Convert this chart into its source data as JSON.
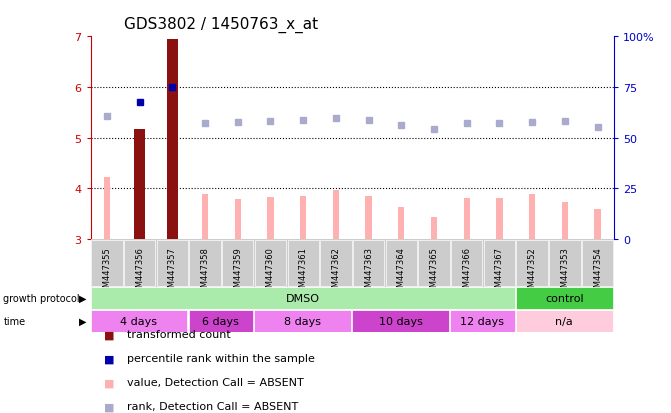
{
  "title": "GDS3802 / 1450763_x_at",
  "samples": [
    "GSM447355",
    "GSM447356",
    "GSM447357",
    "GSM447358",
    "GSM447359",
    "GSM447360",
    "GSM447361",
    "GSM447362",
    "GSM447363",
    "GSM447364",
    "GSM447365",
    "GSM447366",
    "GSM447367",
    "GSM447352",
    "GSM447353",
    "GSM447354"
  ],
  "transformed_count": [
    null,
    5.18,
    6.95,
    null,
    null,
    null,
    null,
    null,
    null,
    null,
    null,
    null,
    null,
    null,
    null,
    null
  ],
  "absent_value": [
    4.22,
    null,
    null,
    3.88,
    3.79,
    3.84,
    3.86,
    3.97,
    3.86,
    3.63,
    3.43,
    3.82,
    3.82,
    3.88,
    3.73,
    3.6
  ],
  "percentile_rank_left": [
    null,
    5.7,
    6.0,
    null,
    null,
    null,
    null,
    null,
    null,
    null,
    null,
    null,
    null,
    null,
    null,
    null
  ],
  "absent_rank_left": [
    5.42,
    null,
    null,
    5.28,
    5.3,
    5.32,
    5.35,
    5.38,
    5.35,
    5.25,
    5.18,
    5.28,
    5.28,
    5.3,
    5.32,
    5.22
  ],
  "ylim": [
    3.0,
    7.0
  ],
  "y2lim": [
    0,
    100
  ],
  "yticks": [
    3,
    4,
    5,
    6,
    7
  ],
  "y2ticks": [
    0,
    25,
    50,
    75,
    100
  ],
  "y2tick_labels": [
    "0",
    "25",
    "50",
    "75",
    "100%"
  ],
  "growth_protocol_groups": [
    {
      "label": "DMSO",
      "start": 0,
      "end": 12,
      "color": "#AAEAAA"
    },
    {
      "label": "control",
      "start": 13,
      "end": 15,
      "color": "#44CC44"
    }
  ],
  "time_groups": [
    {
      "label": "4 days",
      "start": 0,
      "end": 2,
      "color": "#EE82EE"
    },
    {
      "label": "6 days",
      "start": 3,
      "end": 4,
      "color": "#CC44CC"
    },
    {
      "label": "8 days",
      "start": 5,
      "end": 7,
      "color": "#EE82EE"
    },
    {
      "label": "10 days",
      "start": 8,
      "end": 10,
      "color": "#CC44CC"
    },
    {
      "label": "12 days",
      "start": 11,
      "end": 12,
      "color": "#EE82EE"
    },
    {
      "label": "n/a",
      "start": 13,
      "end": 15,
      "color": "#FFCCDD"
    }
  ],
  "bar_color_dark": "#8B1010",
  "bar_color_light": "#FFB0B0",
  "rank_color_dark": "#0000AA",
  "rank_color_light": "#AAAACC",
  "axis_left_color": "#CC0000",
  "axis_right_color": "#0000CC",
  "sample_box_color": "#CCCCCC",
  "legend_items": [
    {
      "color": "#8B1010",
      "label": "transformed count"
    },
    {
      "color": "#0000AA",
      "label": "percentile rank within the sample"
    },
    {
      "color": "#FFB0B0",
      "label": "value, Detection Call = ABSENT"
    },
    {
      "color": "#AAAACC",
      "label": "rank, Detection Call = ABSENT"
    }
  ]
}
